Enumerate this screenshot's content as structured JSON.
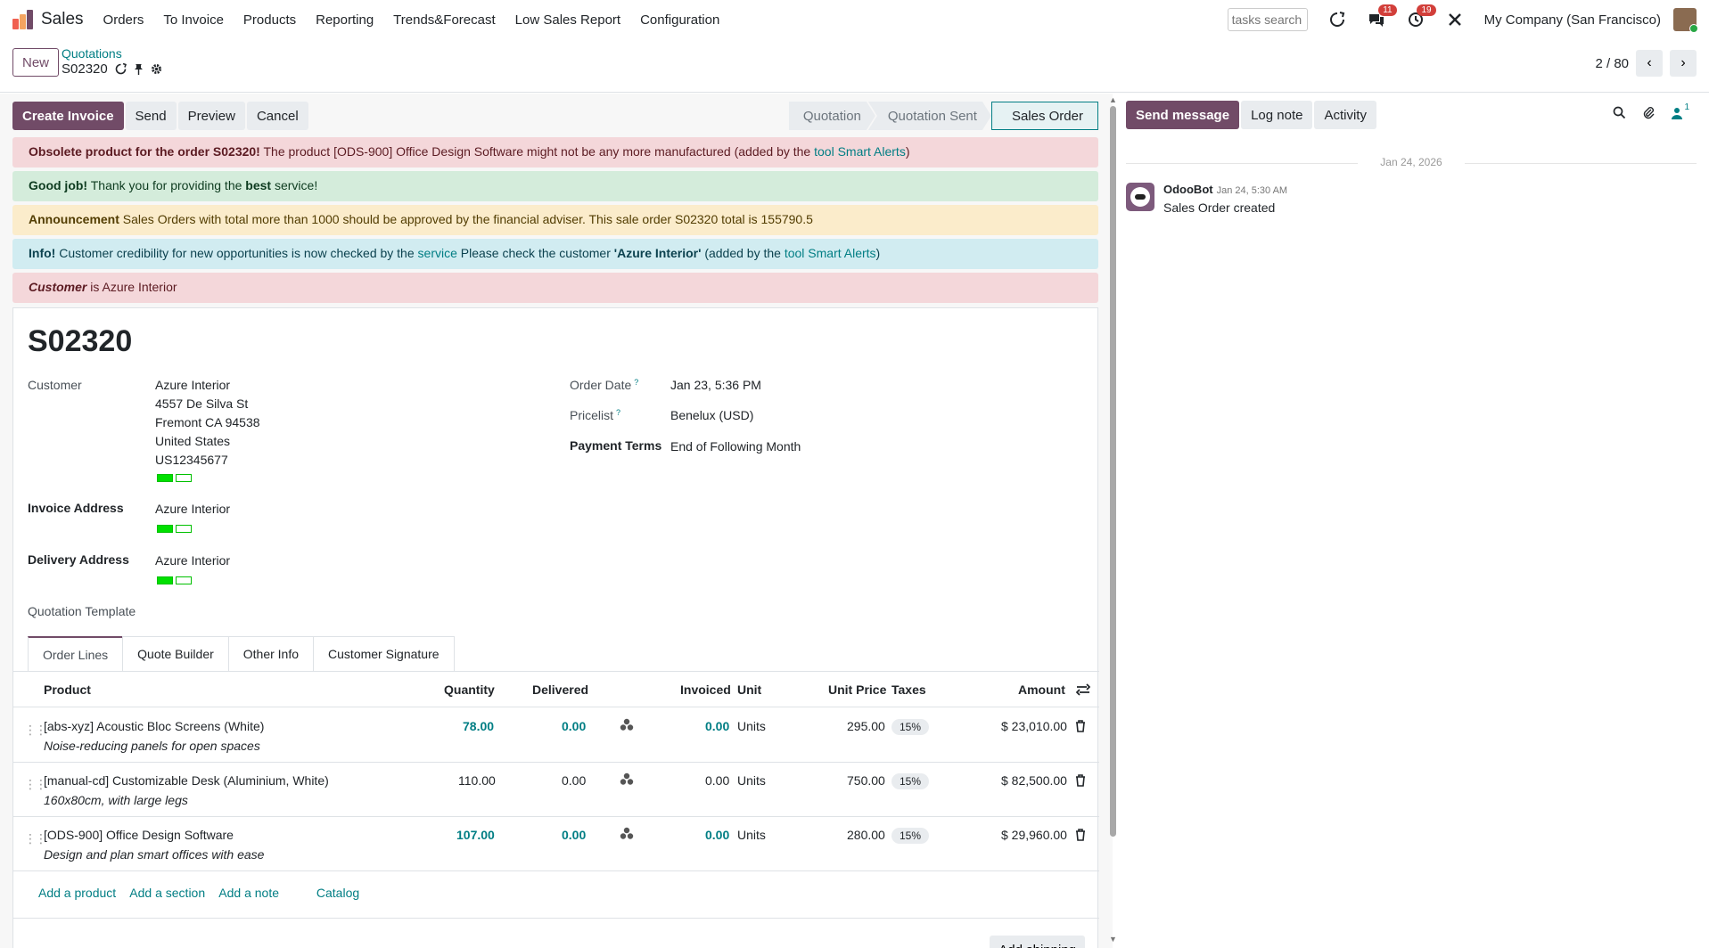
{
  "nav": {
    "app_name": "Sales",
    "menu": [
      "Orders",
      "To Invoice",
      "Products",
      "Reporting",
      "Trends&Forecast",
      "Low Sales Report",
      "Configuration"
    ],
    "search_placeholder": "tasks search",
    "messages_count": "11",
    "activities_count": "19",
    "company": "My Company (San Francisco)"
  },
  "control": {
    "new_label": "New",
    "breadcrumb_parent": "Quotations",
    "breadcrumb_current": "S02320",
    "pager": "2 / 80"
  },
  "statusbar": {
    "buttons": [
      "Create Invoice",
      "Send",
      "Preview",
      "Cancel"
    ],
    "stages": [
      "Quotation",
      "Quotation Sent",
      "Sales Order"
    ],
    "active_stage": "Sales Order"
  },
  "alerts": {
    "a1_bold": "Obsolete product for the order S02320!",
    "a1_text": " The product [ODS-900] Office Design Software might not be any more manufactured (added by the ",
    "a1_link": "tool Smart Alerts",
    "a1_end": ")",
    "a2_bold": "Good job!",
    "a2_text": " Thank you for providing the ",
    "a2_bold2": "best",
    "a2_end": " service!",
    "a3_bold": "Announcement",
    "a3_text": " Sales Orders with total more than 1000 should be approved by the financial adviser. This sale order S02320 total is 155790.5",
    "a4_bold": "Info!",
    "a4_text": " Customer credibility for new opportunities is now checked by the ",
    "a4_link1": "service",
    "a4_text2": " Please check the customer ",
    "a4_bold2": "'Azure Interior'",
    "a4_text3": " (added by the ",
    "a4_link2": "tool Smart Alerts",
    "a4_end": ")",
    "a5_bold": "Customer",
    "a5_text": " is Azure Interior"
  },
  "form": {
    "title": "S02320",
    "customer_label": "Customer",
    "customer_name": "Azure Interior",
    "address_lines": [
      "4557 De Silva St",
      "Fremont CA 94538",
      "United States",
      "US12345677"
    ],
    "invoice_address_label": "Invoice Address",
    "invoice_address": "Azure Interior",
    "delivery_address_label": "Delivery Address",
    "delivery_address": "Azure Interior",
    "quotation_template_label": "Quotation Template",
    "order_date_label": "Order Date",
    "order_date": "Jan 23, 5:36 PM",
    "pricelist_label": "Pricelist",
    "pricelist": "Benelux (USD)",
    "payment_terms_label": "Payment Terms",
    "payment_terms": "End of Following Month",
    "help_mark": "?"
  },
  "tabs": [
    "Order Lines",
    "Quote Builder",
    "Other Info",
    "Customer Signature"
  ],
  "table": {
    "headers": {
      "product": "Product",
      "quantity": "Quantity",
      "delivered": "Delivered",
      "invoiced": "Invoiced",
      "unit": "Unit",
      "unit_price": "Unit Price",
      "taxes": "Taxes",
      "amount": "Amount"
    },
    "rows": [
      {
        "product": "[abs-xyz] Acoustic Bloc Screens (White)",
        "desc": "Noise-reducing panels for open spaces",
        "quantity": "78.00",
        "delivered": "0.00",
        "invoiced": "0.00",
        "unit": "Units",
        "price": "295.00",
        "tax": "15%",
        "amount": "$ 23,010.00"
      },
      {
        "product": "[manual-cd] Customizable Desk (Aluminium, White)",
        "desc": "160x80cm, with large legs",
        "quantity": "110.00",
        "delivered": "0.00",
        "invoiced": "0.00",
        "unit": "Units",
        "price": "750.00",
        "tax": "15%",
        "amount": "$ 82,500.00"
      },
      {
        "product": "[ODS-900] Office Design Software",
        "desc": "Design and plan smart offices with ease",
        "quantity": "107.00",
        "delivered": "0.00",
        "invoiced": "0.00",
        "unit": "Units",
        "price": "280.00",
        "tax": "15%",
        "amount": "$ 29,960.00"
      }
    ],
    "add_product": "Add a product",
    "add_section": "Add a section",
    "add_note": "Add a note",
    "catalog": "Catalog",
    "add_shipping": "Add shipping"
  },
  "chatter": {
    "send_message": "Send message",
    "log_note": "Log note",
    "activity": "Activity",
    "followers_count": "1",
    "date_separator": "Jan 24, 2026",
    "author": "OdooBot",
    "time": "Jan 24, 5:30 AM",
    "body": "Sales Order created"
  },
  "colors": {
    "brand": "#714b67",
    "link": "#017e84"
  }
}
